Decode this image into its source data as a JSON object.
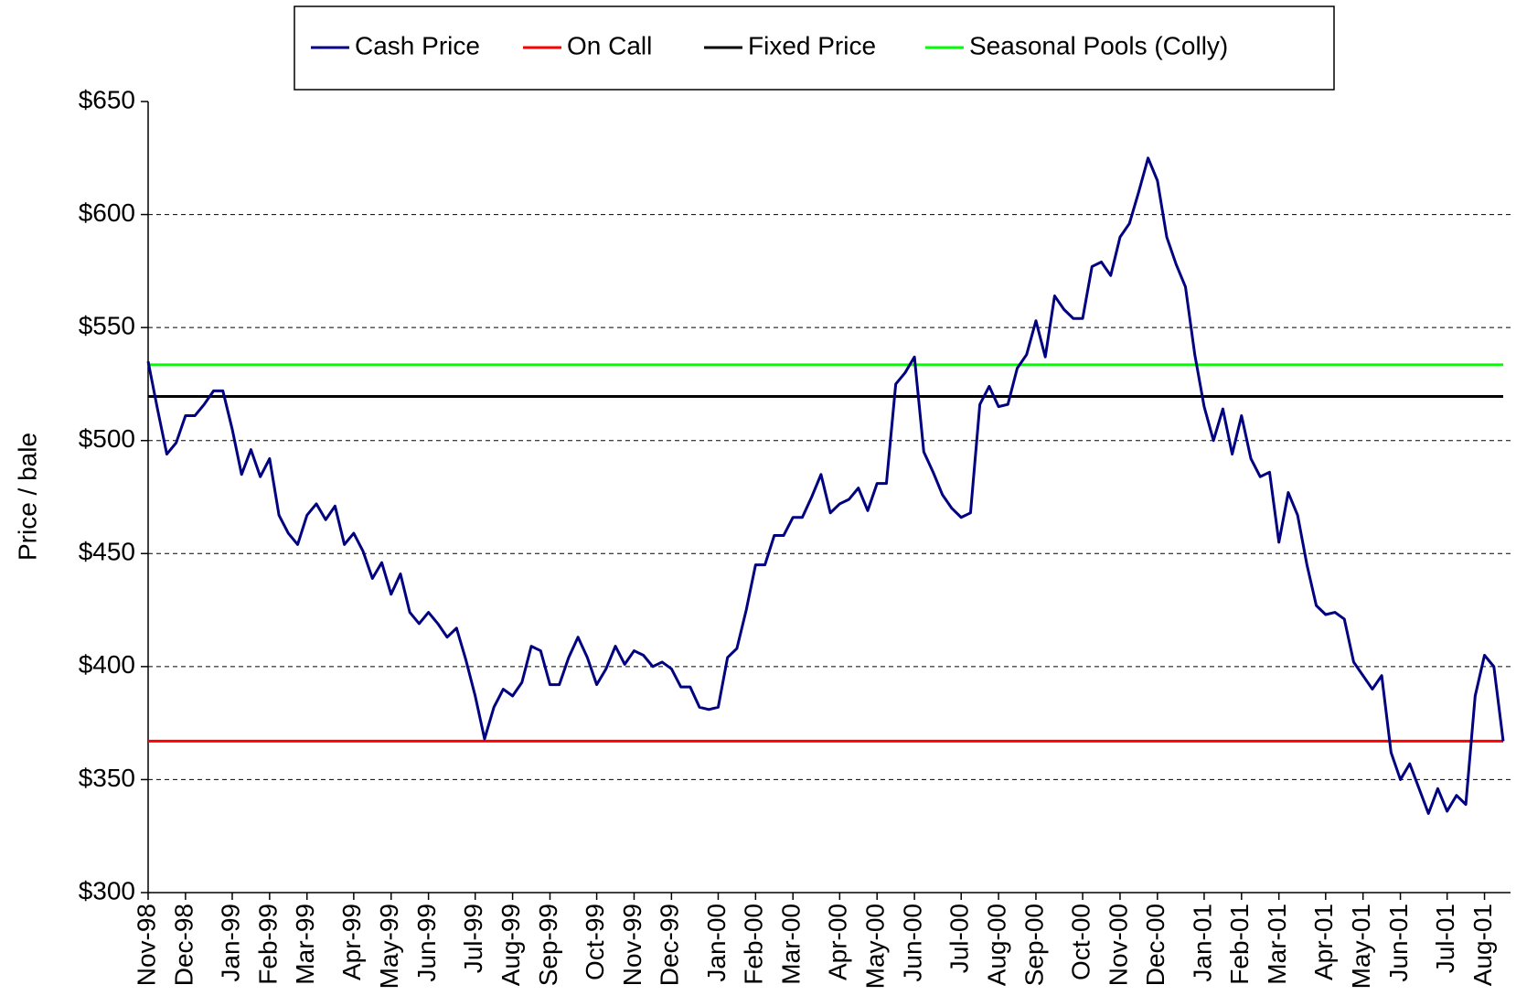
{
  "chart_data": {
    "type": "line",
    "ylabel": "Price / bale",
    "categories": [
      "Nov-98",
      null,
      null,
      null,
      "Dec-98",
      null,
      null,
      null,
      null,
      "Jan-99",
      null,
      null,
      null,
      "Feb-99",
      null,
      null,
      null,
      "Mar-99",
      null,
      null,
      null,
      null,
      "Apr-99",
      null,
      null,
      null,
      "May-99",
      null,
      null,
      null,
      "Jun-99",
      null,
      null,
      null,
      null,
      "Jul-99",
      null,
      null,
      null,
      "Aug-99",
      null,
      null,
      null,
      "Sep-99",
      null,
      null,
      null,
      null,
      "Oct-99",
      null,
      null,
      null,
      "Nov-99",
      null,
      null,
      null,
      "Dec-99",
      null,
      null,
      null,
      null,
      "Jan-00",
      null,
      null,
      null,
      "Feb-00",
      null,
      null,
      null,
      "Mar-00",
      null,
      null,
      null,
      null,
      "Apr-00",
      null,
      null,
      null,
      "May-00",
      null,
      null,
      null,
      "Jun-00",
      null,
      null,
      null,
      null,
      "Jul-00",
      null,
      null,
      null,
      "Aug-00",
      null,
      null,
      null,
      "Sep-00",
      null,
      null,
      null,
      null,
      "Oct-00",
      null,
      null,
      null,
      "Nov-00",
      null,
      null,
      null,
      "Dec-00",
      null,
      null,
      null,
      null,
      "Jan-01",
      null,
      null,
      null,
      "Feb-01",
      null,
      null,
      null,
      "Mar-01",
      null,
      null,
      null,
      null,
      "Apr-01",
      null,
      null,
      null,
      "May-01",
      null,
      null,
      null,
      "Jun-01",
      null,
      null,
      null,
      null,
      "Jul-01",
      null,
      null,
      null,
      "Aug-01",
      null,
      null
    ],
    "series": [
      {
        "name": "Cash Price",
        "color": "#000080",
        "values": [
          535,
          514,
          494,
          499,
          511,
          511,
          516,
          522,
          522,
          505,
          485,
          496,
          484,
          492,
          467,
          459,
          454,
          467,
          472,
          465,
          471,
          454,
          459,
          451,
          439,
          446,
          432,
          441,
          424,
          419,
          424,
          419,
          413,
          417,
          403,
          387,
          368,
          382,
          390,
          387,
          393,
          409,
          407,
          392,
          392,
          404,
          413,
          404,
          392,
          399,
          409,
          401,
          407,
          405,
          400,
          402,
          399,
          391,
          391,
          382,
          381,
          382,
          404,
          408,
          425,
          445,
          445,
          458,
          458,
          466,
          466,
          475,
          485,
          468,
          472,
          474,
          479,
          469,
          481,
          481,
          525,
          530,
          537,
          495,
          486,
          476,
          470,
          466,
          468,
          516,
          524,
          515,
          516,
          532,
          538,
          553,
          537,
          564,
          558,
          554,
          554,
          577,
          579,
          573,
          590,
          596,
          610,
          625,
          615,
          590,
          578,
          568,
          538,
          515,
          500,
          514,
          494,
          511,
          492,
          484,
          486,
          455,
          477,
          467,
          445,
          427,
          423,
          424,
          421,
          402,
          396,
          390,
          396,
          362,
          350,
          357,
          346,
          335,
          346,
          336,
          343,
          339,
          387,
          405,
          400,
          367
        ]
      }
    ],
    "reference_lines": [
      {
        "name": "On Call",
        "color": "#ff0000",
        "value": 367
      },
      {
        "name": "Fixed Price",
        "color": "#000000",
        "value": 519.5
      },
      {
        "name": "Seasonal Pools (Colly)",
        "color": "#00ff00",
        "value": 533.5
      }
    ],
    "ylim": [
      300,
      650
    ],
    "yticks": [
      {
        "value": 300,
        "label": "$300"
      },
      {
        "value": 350,
        "label": "$350"
      },
      {
        "value": 400,
        "label": "$400"
      },
      {
        "value": 450,
        "label": "$450"
      },
      {
        "value": 500,
        "label": "$500"
      },
      {
        "value": 550,
        "label": "$550"
      },
      {
        "value": 600,
        "label": "$600"
      },
      {
        "value": 650,
        "label": "$650"
      }
    ],
    "grid": true,
    "legend": "top"
  }
}
